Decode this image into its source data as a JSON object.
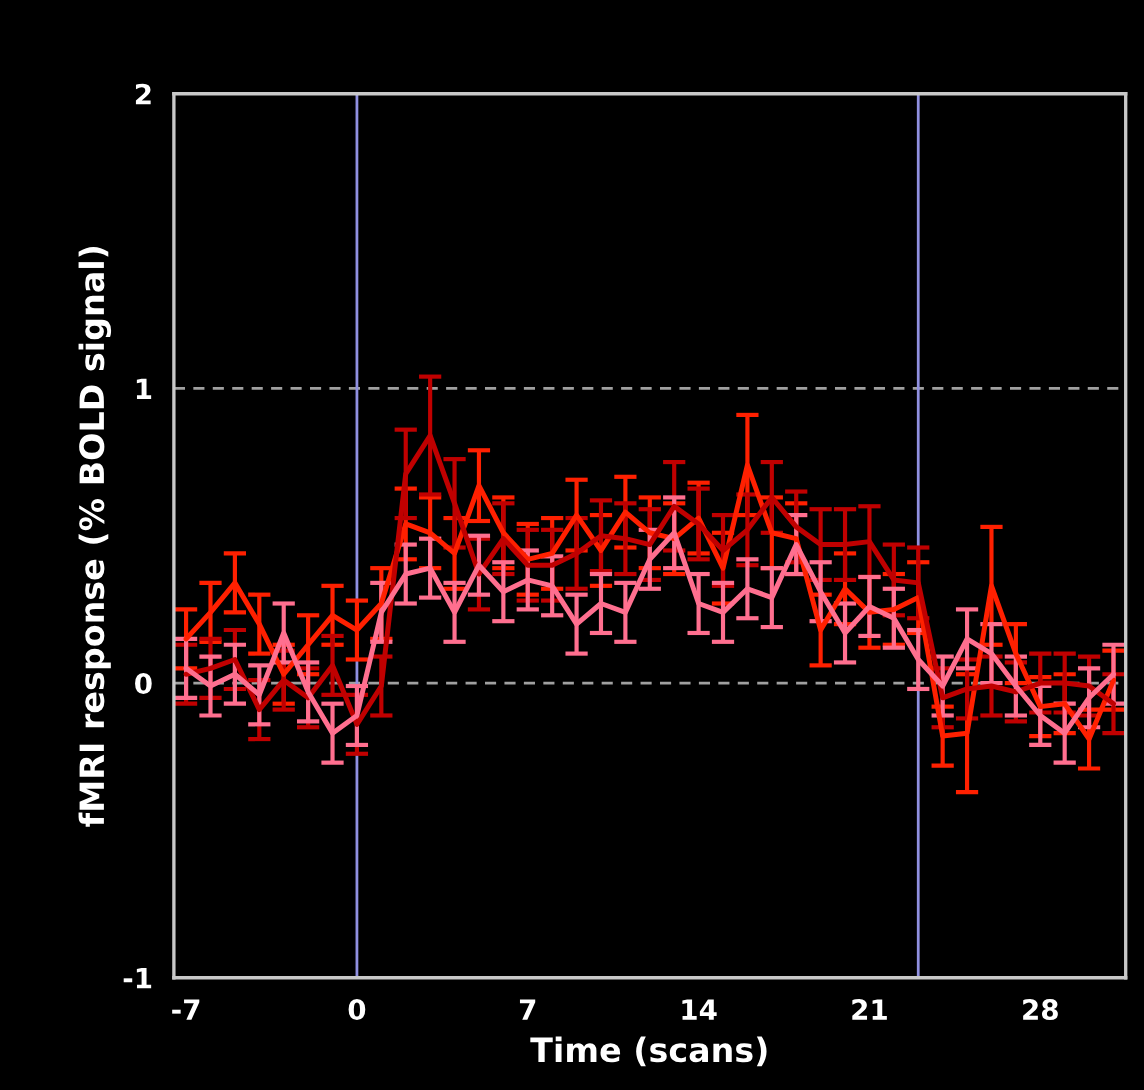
{
  "chart_data": {
    "type": "line",
    "xlabel": "Time (scans)",
    "ylabel": "fMRI response (% BOLD signal)",
    "x": [
      -7,
      -6,
      -5,
      -4,
      -3,
      -2,
      -1,
      0,
      1,
      2,
      3,
      4,
      5,
      6,
      7,
      8,
      9,
      10,
      11,
      12,
      13,
      14,
      15,
      16,
      17,
      18,
      19,
      20,
      21,
      22,
      23,
      24,
      25,
      26,
      27,
      28,
      29,
      30,
      31
    ],
    "series": [
      {
        "color": "#ff2000",
        "values": [
          0.15,
          0.24,
          0.34,
          0.2,
          0.03,
          0.13,
          0.23,
          0.18,
          0.27,
          0.54,
          0.51,
          0.44,
          0.67,
          0.51,
          0.42,
          0.44,
          0.57,
          0.45,
          0.58,
          0.51,
          0.49,
          0.56,
          0.39,
          0.74,
          0.51,
          0.49,
          0.18,
          0.32,
          0.24,
          0.25,
          0.29,
          -0.18,
          -0.17,
          0.33,
          0.1,
          -0.08,
          -0.07,
          -0.19,
          0.01
        ],
        "errors": [
          0.1,
          0.1,
          0.1,
          0.1,
          0.1,
          0.1,
          0.1,
          0.1,
          0.12,
          0.12,
          0.12,
          0.12,
          0.12,
          0.12,
          0.12,
          0.12,
          0.12,
          0.12,
          0.12,
          0.12,
          0.12,
          0.12,
          0.12,
          0.17,
          0.12,
          0.12,
          0.12,
          0.12,
          0.12,
          0.12,
          0.12,
          0.1,
          0.2,
          0.2,
          0.1,
          0.1,
          0.1,
          0.1,
          0.1
        ]
      },
      {
        "color": "#c00000",
        "values": [
          0.03,
          0.05,
          0.08,
          -0.09,
          0.01,
          -0.05,
          0.06,
          -0.14,
          -0.01,
          0.71,
          0.84,
          0.61,
          0.37,
          0.49,
          0.4,
          0.4,
          0.44,
          0.5,
          0.49,
          0.47,
          0.6,
          0.54,
          0.45,
          0.52,
          0.63,
          0.53,
          0.47,
          0.47,
          0.48,
          0.35,
          0.34,
          -0.05,
          -0.02,
          -0.01,
          -0.03,
          0,
          0,
          -0.01,
          -0.07
        ],
        "errors": [
          0.1,
          0.1,
          0.1,
          0.1,
          0.1,
          0.1,
          0.1,
          0.1,
          0.1,
          0.15,
          0.2,
          0.15,
          0.12,
          0.12,
          0.12,
          0.12,
          0.12,
          0.12,
          0.12,
          0.12,
          0.15,
          0.12,
          0.12,
          0.12,
          0.12,
          0.12,
          0.12,
          0.12,
          0.12,
          0.12,
          0.12,
          0.1,
          0.1,
          0.1,
          0.1,
          0.1,
          0.1,
          0.1,
          0.1
        ]
      },
      {
        "color": "#ff6f8f",
        "values": [
          0.05,
          -0.01,
          0.03,
          -0.04,
          0.17,
          -0.03,
          -0.17,
          -0.11,
          0.24,
          0.37,
          0.39,
          0.24,
          0.4,
          0.31,
          0.35,
          0.33,
          0.2,
          0.27,
          0.24,
          0.42,
          0.51,
          0.27,
          0.24,
          0.32,
          0.29,
          0.47,
          0.31,
          0.17,
          0.26,
          0.22,
          0.08,
          -0.01,
          0.15,
          0.1,
          -0.01,
          -0.11,
          -0.17,
          -0.05,
          0.03
        ],
        "errors": [
          0.1,
          0.1,
          0.1,
          0.1,
          0.1,
          0.1,
          0.1,
          0.1,
          0.1,
          0.1,
          0.1,
          0.1,
          0.1,
          0.1,
          0.1,
          0.1,
          0.1,
          0.1,
          0.1,
          0.1,
          0.12,
          0.1,
          0.1,
          0.1,
          0.1,
          0.1,
          0.1,
          0.1,
          0.1,
          0.1,
          0.1,
          0.1,
          0.1,
          0.1,
          0.1,
          0.1,
          0.1,
          0.1,
          0.1
        ]
      }
    ],
    "xlim": [
      -7.5,
      31.5
    ],
    "ylim": [
      -1,
      2
    ],
    "xticks": [
      -7,
      0,
      7,
      14,
      21,
      28
    ],
    "yticks": [
      -1,
      0,
      1,
      2
    ],
    "ref_lines": [
      {
        "axis": "y",
        "value": 0,
        "color": "#a0a0a0",
        "line_style": "dashed"
      },
      {
        "axis": "y",
        "value": 1,
        "color": "#a0a0a0",
        "line_style": "dashed"
      },
      {
        "axis": "x",
        "value": 0,
        "color": "#9090e0",
        "line_style": "solid"
      },
      {
        "axis": "x",
        "value": 23,
        "color": "#9090e0",
        "line_style": "solid"
      }
    ],
    "grid": false,
    "legend": false
  }
}
